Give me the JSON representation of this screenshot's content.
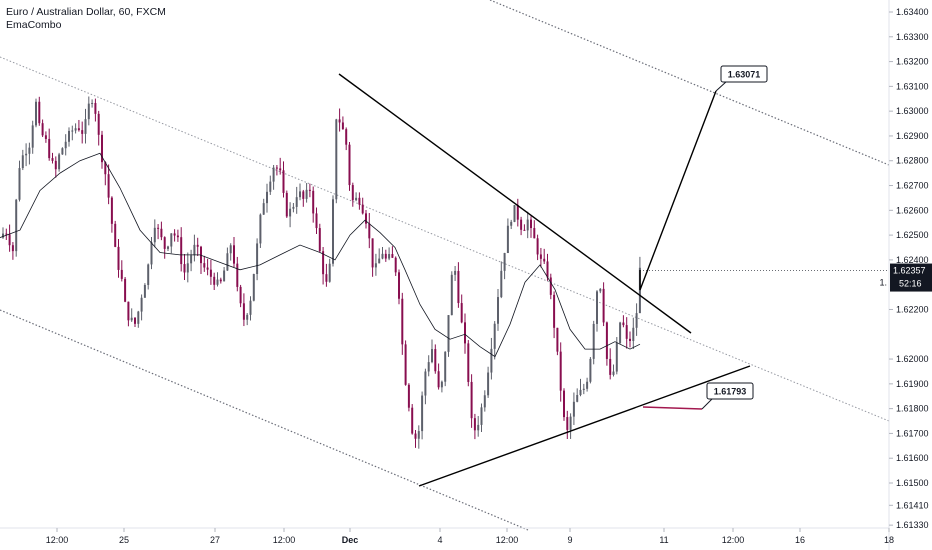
{
  "header": {
    "title": "Euro / Australian Dollar, 60, FXCM",
    "indicator": "EmaCombo"
  },
  "chart_data": {
    "type": "candlestick",
    "symbol": "Euro / Australian Dollar",
    "timeframe": "60",
    "source": "FXCM",
    "y_ticks": [
      "1.63400",
      "1.63300",
      "1.63200",
      "1.63100",
      "1.63000",
      "1.62900",
      "1.62800",
      "1.62700",
      "1.62600",
      "1.62500",
      "1.62400",
      "1.62200",
      "1.62000",
      "1.61900",
      "1.61800",
      "1.61700",
      "1.61600",
      "1.61500",
      "1.61410",
      "1.61330"
    ],
    "x_ticks": [
      "12:00",
      "25",
      "27",
      "12:00",
      "Dec",
      "4",
      "12:00",
      "9",
      "11",
      "12:00",
      "16",
      "18"
    ],
    "x_tick_bold": [
      "Dec"
    ],
    "current_price": "1.62357",
    "countdown": "52:16",
    "price_tag_peek": "1.",
    "callouts": [
      {
        "label": "1.63071",
        "price": 1.63071
      },
      {
        "label": "1.61793",
        "price": 1.61793
      }
    ],
    "price_path": [
      [
        0,
        1.6248
      ],
      [
        8,
        1.6252
      ],
      [
        16,
        1.6243
      ],
      [
        20,
        1.6276
      ],
      [
        26,
        1.6283
      ],
      [
        32,
        1.6287
      ],
      [
        38,
        1.6304
      ],
      [
        42,
        1.6292
      ],
      [
        48,
        1.6288
      ],
      [
        54,
        1.6279
      ],
      [
        58,
        1.6276
      ],
      [
        62,
        1.6283
      ],
      [
        68,
        1.6288
      ],
      [
        74,
        1.6292
      ],
      [
        80,
        1.6294
      ],
      [
        86,
        1.6291
      ],
      [
        92,
        1.6304
      ],
      [
        96,
        1.6306
      ],
      [
        100,
        1.6292
      ],
      [
        104,
        1.6282
      ],
      [
        108,
        1.6274
      ],
      [
        112,
        1.6262
      ],
      [
        118,
        1.6242
      ],
      [
        124,
        1.6232
      ],
      [
        128,
        1.622
      ],
      [
        132,
        1.6216
      ],
      [
        138,
        1.6214
      ],
      [
        144,
        1.6226
      ],
      [
        150,
        1.6236
      ],
      [
        156,
        1.6256
      ],
      [
        162,
        1.625
      ],
      [
        168,
        1.6244
      ],
      [
        174,
        1.6252
      ],
      [
        180,
        1.6248
      ],
      [
        186,
        1.6234
      ],
      [
        192,
        1.6241
      ],
      [
        198,
        1.6246
      ],
      [
        204,
        1.6238
      ],
      [
        210,
        1.6235
      ],
      [
        216,
        1.6232
      ],
      [
        222,
        1.6229
      ],
      [
        228,
        1.6238
      ],
      [
        234,
        1.6248
      ],
      [
        240,
        1.6226
      ],
      [
        246,
        1.6216
      ],
      [
        252,
        1.6222
      ],
      [
        258,
        1.6241
      ],
      [
        264,
        1.6261
      ],
      [
        270,
        1.627
      ],
      [
        276,
        1.6278
      ],
      [
        282,
        1.6276
      ],
      [
        288,
        1.6259
      ],
      [
        294,
        1.626
      ],
      [
        300,
        1.6268
      ],
      [
        306,
        1.6264
      ],
      [
        312,
        1.6269
      ],
      [
        318,
        1.6254
      ],
      [
        324,
        1.6238
      ],
      [
        330,
        1.6228
      ],
      [
        334,
        1.6246
      ],
      [
        338,
        1.6298
      ],
      [
        342,
        1.6296
      ],
      [
        348,
        1.6289
      ],
      [
        352,
        1.627
      ],
      [
        356,
        1.6262
      ],
      [
        360,
        1.6266
      ],
      [
        364,
        1.6262
      ],
      [
        368,
        1.6257
      ],
      [
        372,
        1.6247
      ],
      [
        376,
        1.6235
      ],
      [
        380,
        1.6238
      ],
      [
        384,
        1.6244
      ],
      [
        388,
        1.624
      ],
      [
        394,
        1.6241
      ],
      [
        398,
        1.6236
      ],
      [
        402,
        1.6224
      ],
      [
        406,
        1.6196
      ],
      [
        410,
        1.6186
      ],
      [
        414,
        1.6172
      ],
      [
        418,
        1.6168
      ],
      [
        422,
        1.6172
      ],
      [
        426,
        1.6193
      ],
      [
        430,
        1.6198
      ],
      [
        434,
        1.6205
      ],
      [
        438,
        1.6194
      ],
      [
        442,
        1.6185
      ],
      [
        446,
        1.6194
      ],
      [
        450,
        1.6215
      ],
      [
        454,
        1.6233
      ],
      [
        458,
        1.6236
      ],
      [
        462,
        1.6219
      ],
      [
        466,
        1.6209
      ],
      [
        470,
        1.6195
      ],
      [
        474,
        1.6174
      ],
      [
        478,
        1.6171
      ],
      [
        482,
        1.6177
      ],
      [
        486,
        1.6184
      ],
      [
        490,
        1.6195
      ],
      [
        494,
        1.6207
      ],
      [
        498,
        1.6218
      ],
      [
        502,
        1.6232
      ],
      [
        506,
        1.6242
      ],
      [
        510,
        1.6252
      ],
      [
        514,
        1.6258
      ],
      [
        518,
        1.6261
      ],
      [
        522,
        1.6254
      ],
      [
        526,
        1.6253
      ],
      [
        530,
        1.6256
      ],
      [
        534,
        1.625
      ],
      [
        538,
        1.6247
      ],
      [
        542,
        1.624
      ],
      [
        546,
        1.6238
      ],
      [
        550,
        1.6234
      ],
      [
        554,
        1.6222
      ],
      [
        558,
        1.6208
      ],
      [
        562,
        1.6192
      ],
      [
        566,
        1.6176
      ],
      [
        570,
        1.617
      ],
      [
        574,
        1.6179
      ],
      [
        578,
        1.6184
      ],
      [
        582,
        1.6186
      ],
      [
        586,
        1.6188
      ],
      [
        590,
        1.6193
      ],
      [
        594,
        1.6205
      ],
      [
        598,
        1.6226
      ],
      [
        602,
        1.6232
      ],
      [
        606,
        1.6216
      ],
      [
        610,
        1.6196
      ],
      [
        614,
        1.619
      ],
      [
        618,
        1.6201
      ],
      [
        622,
        1.6215
      ],
      [
        626,
        1.6213
      ],
      [
        630,
        1.6205
      ],
      [
        634,
        1.621
      ],
      [
        638,
        1.6214
      ],
      [
        642,
        1.6236
      ]
    ],
    "ema_path": [
      [
        0,
        1.6249
      ],
      [
        20,
        1.6252
      ],
      [
        40,
        1.6268
      ],
      [
        60,
        1.6275
      ],
      [
        80,
        1.628
      ],
      [
        100,
        1.6283
      ],
      [
        120,
        1.6269
      ],
      [
        140,
        1.6252
      ],
      [
        160,
        1.6243
      ],
      [
        180,
        1.6242
      ],
      [
        200,
        1.6242
      ],
      [
        220,
        1.6239
      ],
      [
        240,
        1.6236
      ],
      [
        260,
        1.6238
      ],
      [
        280,
        1.6242
      ],
      [
        300,
        1.6246
      ],
      [
        320,
        1.6243
      ],
      [
        335,
        1.624
      ],
      [
        350,
        1.625
      ],
      [
        365,
        1.6256
      ],
      [
        380,
        1.6251
      ],
      [
        395,
        1.6245
      ],
      [
        405,
        1.6236
      ],
      [
        420,
        1.6222
      ],
      [
        435,
        1.6212
      ],
      [
        450,
        1.6208
      ],
      [
        465,
        1.621
      ],
      [
        480,
        1.6205
      ],
      [
        495,
        1.6201
      ],
      [
        510,
        1.6214
      ],
      [
        525,
        1.6231
      ],
      [
        540,
        1.6238
      ],
      [
        555,
        1.6228
      ],
      [
        570,
        1.6212
      ],
      [
        585,
        1.6204
      ],
      [
        600,
        1.6204
      ],
      [
        615,
        1.6207
      ],
      [
        630,
        1.6204
      ],
      [
        640,
        1.6206
      ]
    ]
  },
  "colors": {
    "background": "#ffffff",
    "bull": "#5d606b",
    "bear": "#880e4f",
    "trendline": "#000000",
    "channel": "#9598a1",
    "ema": "#131722",
    "tag_bg": "#131722"
  }
}
